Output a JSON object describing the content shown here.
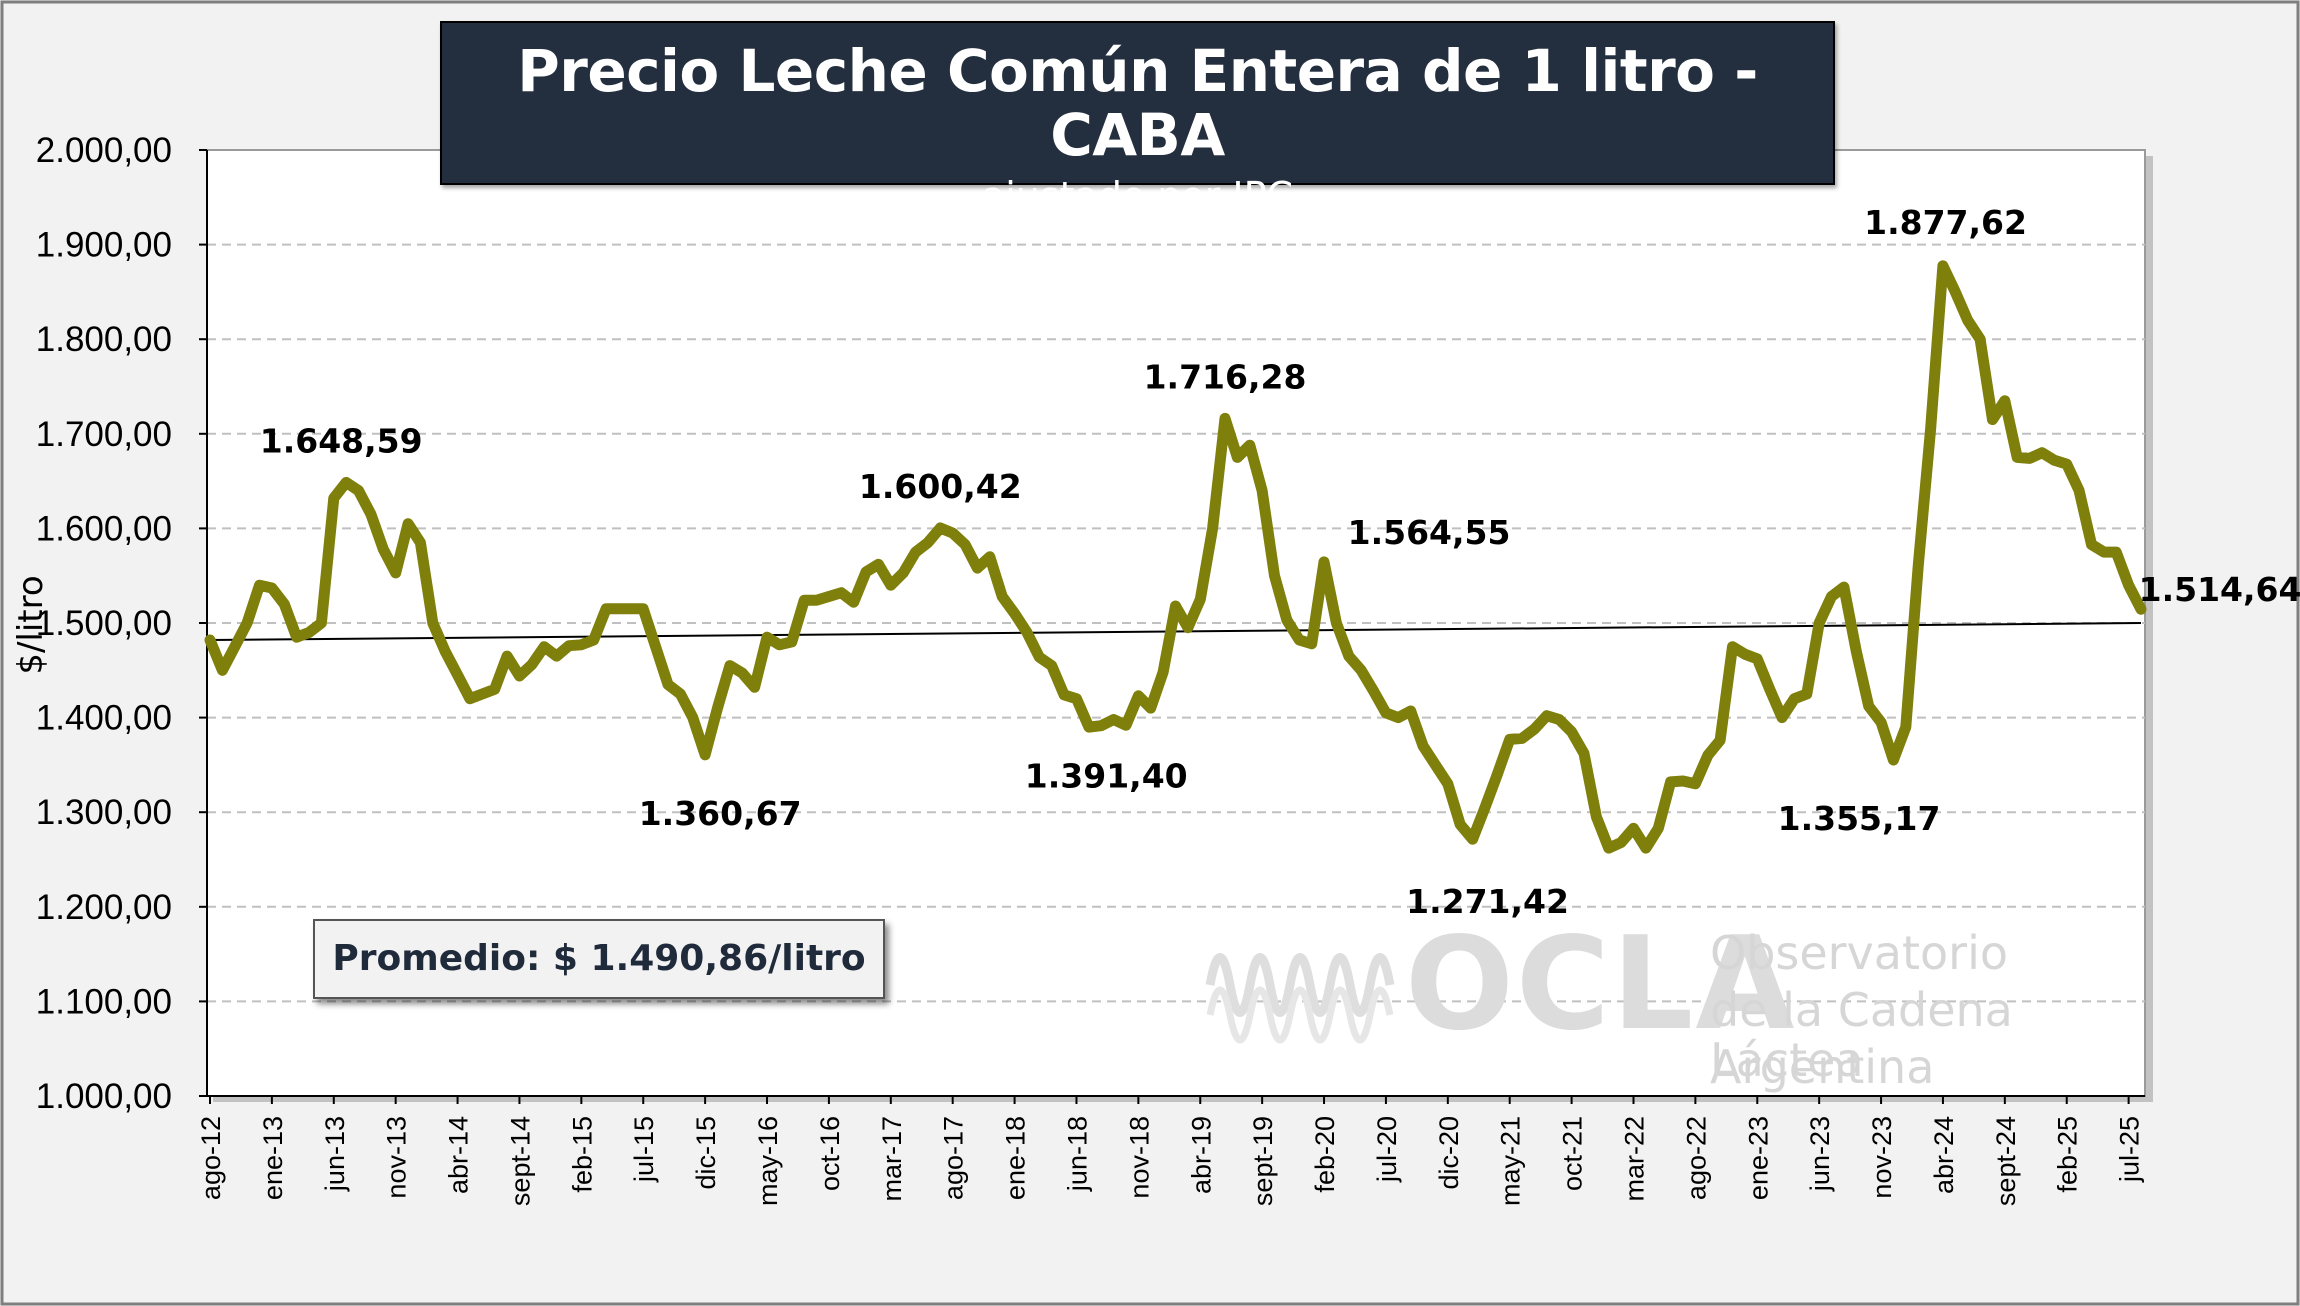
{
  "title": "Precio Leche Común Entera de 1 litro - CABA",
  "subtitle": "- ajustado por IPC -",
  "average_label": "Promedio: $ 1.490,86/litro",
  "watermark": {
    "brand": "OCLA",
    "line1": "Observatorio",
    "line2": "de la Cadena Láctea",
    "line3": "Argentina"
  },
  "colors": {
    "series": "#7f7f0c",
    "trend": "#000000",
    "title_bg": "#232f3e",
    "plot_bg": "#ffffff",
    "grid": "#c0c0c0"
  },
  "chart_data": {
    "type": "line",
    "ylabel": "$/litro",
    "xlabel": "",
    "ylim": [
      1000,
      2000
    ],
    "yticks": [
      1000,
      1100,
      1200,
      1300,
      1400,
      1500,
      1600,
      1700,
      1800,
      1900,
      2000
    ],
    "ytick_labels": [
      "1.000,00",
      "1.100,00",
      "1.200,00",
      "1.300,00",
      "1.400,00",
      "1.500,00",
      "1.600,00",
      "1.700,00",
      "1.800,00",
      "1.900,00",
      "2.000,00"
    ],
    "grid": "horizontal dashed",
    "legend": "none",
    "x_tick_labels": [
      "ago-12",
      "ene-13",
      "jun-13",
      "nov-13",
      "abr-14",
      "sept-14",
      "feb-15",
      "jul-15",
      "dic-15",
      "may-16",
      "oct-16",
      "mar-17",
      "ago-17",
      "ene-18",
      "jun-18",
      "nov-18",
      "abr-19",
      "sept-19",
      "feb-20",
      "jul-20",
      "dic-20",
      "may-21",
      "oct-21",
      "mar-22",
      "ago-22",
      "ene-23",
      "jun-23",
      "nov-23",
      "abr-24",
      "sept-24",
      "feb-25",
      "jul-25"
    ],
    "x_tick_start": "ago-12",
    "x_tick_every_months": 5,
    "series": [
      {
        "start": "ago-12",
        "values": [
          1482,
          1450,
          1475,
          1500,
          1540,
          1537,
          1520,
          1485,
          1490,
          1500,
          1632,
          1648.59,
          1640,
          1615,
          1578,
          1553,
          1605,
          1585,
          1500,
          1470,
          1445,
          1420,
          1425,
          1430,
          1465,
          1444,
          1456,
          1475,
          1465,
          1476,
          1477,
          1482,
          1515,
          1515,
          1515,
          1515,
          1475,
          1435,
          1425,
          1400,
          1360.67,
          1410,
          1455,
          1447,
          1432,
          1485,
          1477,
          1480,
          1524,
          1524,
          1528,
          1532,
          1522,
          1554,
          1562,
          1540,
          1553,
          1575,
          1585,
          1600.42,
          1595,
          1583,
          1558,
          1570,
          1528,
          1510,
          1490,
          1464,
          1455,
          1424,
          1420,
          1390,
          1391.4,
          1398,
          1392,
          1423,
          1410,
          1448,
          1518,
          1495,
          1525,
          1600,
          1716.28,
          1675,
          1688,
          1640,
          1550,
          1503,
          1482,
          1478,
          1564.55,
          1500,
          1465,
          1450,
          1428,
          1405,
          1400,
          1407,
          1370,
          1350,
          1330,
          1287,
          1271.42,
          1305,
          1340,
          1377,
          1378,
          1388,
          1402,
          1398,
          1385,
          1362,
          1295,
          1262,
          1268,
          1283,
          1262,
          1283,
          1332,
          1333,
          1330,
          1360,
          1376,
          1475,
          1467,
          1462,
          1430,
          1400,
          1420,
          1425,
          1500,
          1528,
          1538,
          1470,
          1412,
          1395,
          1355.17,
          1390,
          1560,
          1705,
          1877.62,
          1850,
          1820,
          1800,
          1715,
          1735,
          1675,
          1674,
          1680,
          1672,
          1668,
          1640,
          1583,
          1575,
          1575,
          1540,
          1514.64
        ]
      }
    ],
    "trendline": {
      "start_value": 1482,
      "end_value": 1500
    },
    "annotations": [
      {
        "text": "1.648,59",
        "month_index": 11,
        "value": 1648.59
      },
      {
        "text": "1.360,67",
        "month_index": 40,
        "value": 1360.67
      },
      {
        "text": "1.600,42",
        "month_index": 59,
        "value": 1600.42
      },
      {
        "text": "1.391,40",
        "month_index": 72,
        "value": 1391.4
      },
      {
        "text": "1.716,28",
        "month_index": 82,
        "value": 1716.28
      },
      {
        "text": "1.564,55",
        "month_index": 90,
        "value": 1564.55
      },
      {
        "text": "1.271,42",
        "month_index": 102,
        "value": 1271.42
      },
      {
        "text": "1.355,17",
        "month_index": 135,
        "value": 1355.17
      },
      {
        "text": "1.877,62",
        "month_index": 139,
        "value": 1877.62
      },
      {
        "text": "1.514,64",
        "month_index": 155,
        "value": 1514.64
      }
    ]
  }
}
